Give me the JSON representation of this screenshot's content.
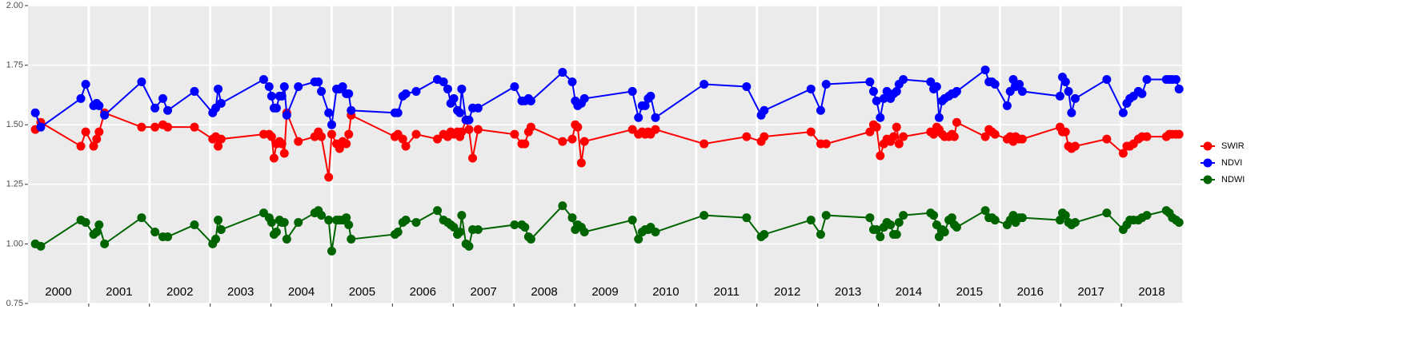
{
  "chart_data": {
    "type": "line",
    "x": [
      2000.12,
      2000.21,
      2000.87,
      2000.95,
      2001.08,
      2001.13,
      2001.17,
      2001.26,
      2001.87,
      2002.09,
      2002.22,
      2002.3,
      2002.74,
      2003.04,
      2003.09,
      2003.13,
      2003.18,
      2003.88,
      2003.97,
      2004.01,
      2004.05,
      2004.09,
      2004.14,
      2004.18,
      2004.22,
      2004.26,
      2004.45,
      2004.72,
      2004.78,
      2004.83,
      2004.95,
      2005.0,
      2005.08,
      2005.13,
      2005.18,
      2005.24,
      2005.28,
      2005.32,
      2006.04,
      2006.09,
      2006.17,
      2006.22,
      2006.39,
      2006.74,
      2006.84,
      2006.91,
      2006.96,
      2007.01,
      2007.07,
      2007.11,
      2007.14,
      2007.21,
      2007.26,
      2007.32,
      2007.41,
      2008.01,
      2008.13,
      2008.18,
      2008.24,
      2008.28,
      2008.8,
      2008.96,
      2009.01,
      2009.05,
      2009.11,
      2009.16,
      2009.95,
      2010.05,
      2010.11,
      2010.16,
      2010.21,
      2010.25,
      2010.33,
      2011.13,
      2011.83,
      2012.07,
      2012.12,
      2012.89,
      2013.05,
      2013.14,
      2013.86,
      2013.92,
      2013.97,
      2014.03,
      2014.09,
      2014.14,
      2014.2,
      2014.25,
      2014.3,
      2014.34,
      2014.41,
      2014.86,
      2014.91,
      2014.96,
      2015.0,
      2015.05,
      2015.09,
      2015.16,
      2015.21,
      2015.25,
      2015.29,
      2015.76,
      2015.82,
      2015.87,
      2015.92,
      2016.12,
      2016.17,
      2016.22,
      2016.26,
      2016.32,
      2016.37,
      2016.99,
      2017.03,
      2017.08,
      2017.13,
      2017.18,
      2017.24,
      2017.76,
      2018.03,
      2018.09,
      2018.14,
      2018.2,
      2018.28,
      2018.34,
      2018.42,
      2018.74,
      2018.79,
      2018.84,
      2018.9,
      2018.95
    ],
    "series": [
      {
        "name": "SWIR",
        "color": "#ff0000",
        "values": [
          1.48,
          1.51,
          1.41,
          1.47,
          1.41,
          1.44,
          1.47,
          1.55,
          1.49,
          1.49,
          1.5,
          1.49,
          1.49,
          1.44,
          1.45,
          1.41,
          1.44,
          1.46,
          1.46,
          1.45,
          1.36,
          1.42,
          1.43,
          1.42,
          1.38,
          1.55,
          1.43,
          1.45,
          1.47,
          1.45,
          1.28,
          1.46,
          1.42,
          1.4,
          1.43,
          1.42,
          1.46,
          1.54,
          1.45,
          1.46,
          1.44,
          1.41,
          1.46,
          1.44,
          1.46,
          1.45,
          1.47,
          1.46,
          1.47,
          1.45,
          1.47,
          1.52,
          1.48,
          1.36,
          1.48,
          1.46,
          1.42,
          1.42,
          1.47,
          1.49,
          1.43,
          1.44,
          1.5,
          1.49,
          1.34,
          1.43,
          1.48,
          1.46,
          1.47,
          1.46,
          1.47,
          1.46,
          1.48,
          1.42,
          1.45,
          1.43,
          1.45,
          1.47,
          1.42,
          1.42,
          1.47,
          1.5,
          1.49,
          1.37,
          1.42,
          1.44,
          1.43,
          1.45,
          1.49,
          1.42,
          1.45,
          1.47,
          1.46,
          1.49,
          1.48,
          1.46,
          1.45,
          1.45,
          1.46,
          1.45,
          1.51,
          1.45,
          1.48,
          1.47,
          1.46,
          1.44,
          1.45,
          1.43,
          1.45,
          1.44,
          1.44,
          1.49,
          1.47,
          1.47,
          1.41,
          1.4,
          1.41,
          1.44,
          1.38,
          1.41,
          1.41,
          1.42,
          1.44,
          1.45,
          1.45,
          1.45,
          1.46,
          1.46,
          1.46,
          1.46
        ]
      },
      {
        "name": "NDVI",
        "color": "#0000ff",
        "values": [
          1.55,
          1.49,
          1.61,
          1.67,
          1.58,
          1.59,
          1.58,
          1.54,
          1.68,
          1.57,
          1.61,
          1.56,
          1.64,
          1.55,
          1.57,
          1.65,
          1.59,
          1.69,
          1.66,
          1.62,
          1.57,
          1.57,
          1.62,
          1.62,
          1.66,
          1.54,
          1.66,
          1.68,
          1.68,
          1.64,
          1.55,
          1.5,
          1.65,
          1.65,
          1.66,
          1.63,
          1.63,
          1.56,
          1.55,
          1.55,
          1.62,
          1.63,
          1.64,
          1.69,
          1.68,
          1.65,
          1.59,
          1.61,
          1.56,
          1.55,
          1.65,
          1.52,
          1.52,
          1.57,
          1.57,
          1.66,
          1.6,
          1.6,
          1.61,
          1.6,
          1.72,
          1.68,
          1.6,
          1.58,
          1.59,
          1.61,
          1.64,
          1.53,
          1.58,
          1.58,
          1.61,
          1.62,
          1.53,
          1.67,
          1.66,
          1.54,
          1.56,
          1.65,
          1.56,
          1.67,
          1.68,
          1.64,
          1.6,
          1.53,
          1.61,
          1.64,
          1.61,
          1.63,
          1.64,
          1.67,
          1.69,
          1.68,
          1.65,
          1.66,
          1.53,
          1.6,
          1.61,
          1.62,
          1.63,
          1.63,
          1.64,
          1.73,
          1.68,
          1.68,
          1.67,
          1.58,
          1.64,
          1.69,
          1.66,
          1.67,
          1.64,
          1.62,
          1.7,
          1.68,
          1.64,
          1.55,
          1.61,
          1.69,
          1.55,
          1.59,
          1.61,
          1.62,
          1.64,
          1.63,
          1.69,
          1.69,
          1.69,
          1.69,
          1.69,
          1.65
        ]
      },
      {
        "name": "NDWI",
        "color": "#006400",
        "values": [
          1.0,
          0.99,
          1.1,
          1.09,
          1.04,
          1.05,
          1.08,
          1.0,
          1.11,
          1.05,
          1.03,
          1.03,
          1.08,
          1.0,
          1.02,
          1.1,
          1.06,
          1.13,
          1.11,
          1.09,
          1.04,
          1.05,
          1.1,
          1.09,
          1.09,
          1.02,
          1.09,
          1.13,
          1.14,
          1.12,
          1.1,
          0.97,
          1.1,
          1.1,
          1.1,
          1.11,
          1.08,
          1.02,
          1.04,
          1.05,
          1.09,
          1.1,
          1.09,
          1.14,
          1.1,
          1.09,
          1.08,
          1.07,
          1.04,
          1.05,
          1.12,
          1.0,
          0.99,
          1.06,
          1.06,
          1.08,
          1.08,
          1.07,
          1.03,
          1.02,
          1.16,
          1.11,
          1.06,
          1.08,
          1.07,
          1.05,
          1.1,
          1.02,
          1.05,
          1.06,
          1.06,
          1.07,
          1.05,
          1.12,
          1.11,
          1.03,
          1.04,
          1.1,
          1.04,
          1.12,
          1.11,
          1.06,
          1.06,
          1.03,
          1.07,
          1.09,
          1.08,
          1.04,
          1.04,
          1.09,
          1.12,
          1.13,
          1.12,
          1.08,
          1.03,
          1.06,
          1.05,
          1.1,
          1.11,
          1.08,
          1.07,
          1.14,
          1.11,
          1.11,
          1.1,
          1.08,
          1.1,
          1.12,
          1.09,
          1.11,
          1.11,
          1.1,
          1.13,
          1.12,
          1.09,
          1.08,
          1.09,
          1.13,
          1.06,
          1.08,
          1.1,
          1.1,
          1.1,
          1.11,
          1.12,
          1.14,
          1.13,
          1.11,
          1.1,
          1.09
        ]
      }
    ],
    "xlim": [
      2000,
      2019
    ],
    "xticks": [
      2001,
      2002,
      2003,
      2004,
      2005,
      2006,
      2007,
      2008,
      2009,
      2010,
      2011,
      2012,
      2013,
      2014,
      2015,
      2016,
      2017,
      2018
    ],
    "year_labels": [
      {
        "value": 2000.5,
        "label": "2000"
      },
      {
        "value": 2001.5,
        "label": "2001"
      },
      {
        "value": 2002.5,
        "label": "2002"
      },
      {
        "value": 2003.5,
        "label": "2003"
      },
      {
        "value": 2004.5,
        "label": "2004"
      },
      {
        "value": 2005.5,
        "label": "2005"
      },
      {
        "value": 2006.5,
        "label": "2006"
      },
      {
        "value": 2007.5,
        "label": "2007"
      },
      {
        "value": 2008.5,
        "label": "2008"
      },
      {
        "value": 2009.5,
        "label": "2009"
      },
      {
        "value": 2010.5,
        "label": "2010"
      },
      {
        "value": 2011.5,
        "label": "2011"
      },
      {
        "value": 2012.5,
        "label": "2012"
      },
      {
        "value": 2013.5,
        "label": "2013"
      },
      {
        "value": 2014.5,
        "label": "2014"
      },
      {
        "value": 2015.5,
        "label": "2015"
      },
      {
        "value": 2016.5,
        "label": "2016"
      },
      {
        "value": 2017.5,
        "label": "2017"
      },
      {
        "value": 2018.5,
        "label": "2018"
      }
    ],
    "ylim": [
      0.75,
      2.0
    ],
    "yticks": [
      {
        "value": 0.75,
        "label": "0.75"
      },
      {
        "value": 1.0,
        "label": "1.00"
      },
      {
        "value": 1.25,
        "label": "1.25"
      },
      {
        "value": 1.5,
        "label": "1.50"
      },
      {
        "value": 1.75,
        "label": "1.75"
      },
      {
        "value": 2.0,
        "label": "2.00"
      }
    ],
    "grid": true,
    "legend": "right"
  }
}
